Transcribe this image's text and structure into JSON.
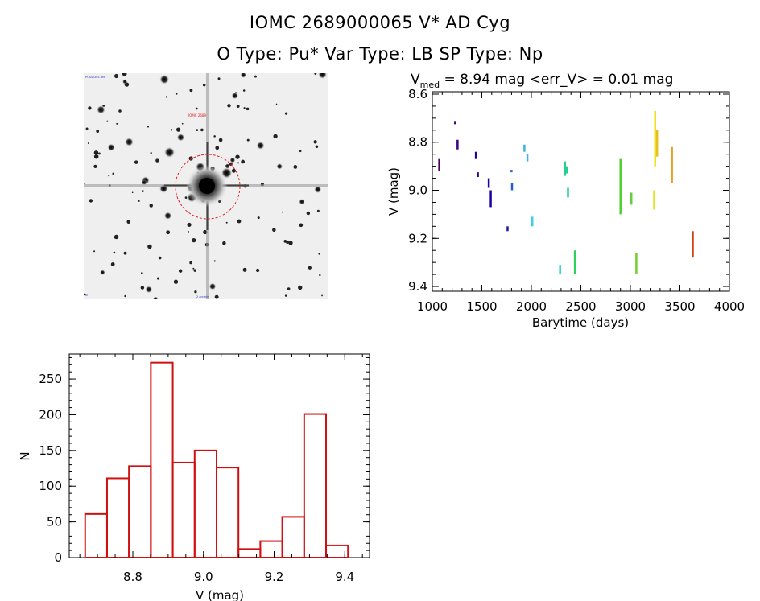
{
  "header": {
    "title": "IOMC 2689000065    V* AD Cyg",
    "subtitle": "O Type: Pu*  Var Type: LB  SP Type: Np"
  },
  "image_panel": {
    "description_icon": "star-field-thumbnail",
    "circle_color": "#ff0000"
  },
  "chart_data": [
    {
      "type": "scatter",
      "title_main": "V",
      "title_sub": "med",
      "title_rest": " = 8.94 mag <err_V> = 0.01 mag",
      "xlabel": "Barytime (days)",
      "ylabel": "V (mag)",
      "xlim": [
        1000,
        4000
      ],
      "ylim": [
        9.42,
        8.59
      ],
      "y_inverted": true,
      "xticks": [
        1000,
        1500,
        2000,
        2500,
        3000,
        3500,
        4000
      ],
      "yticks": [
        8.6,
        8.8,
        9.0,
        9.2,
        9.4
      ],
      "ytick_labels": [
        "8.6",
        "8.8",
        "9.0",
        "9.2",
        "9.4"
      ],
      "segments": [
        {
          "x": 1070,
          "y1": 8.87,
          "y2": 8.92,
          "color": "#4b0059"
        },
        {
          "x": 1230,
          "y1": 8.715,
          "y2": 8.725,
          "color": "#3c0080"
        },
        {
          "x": 1255,
          "y1": 8.79,
          "y2": 8.83,
          "color": "#3c0080"
        },
        {
          "x": 1440,
          "y1": 8.84,
          "y2": 8.87,
          "color": "#2a0090"
        },
        {
          "x": 1460,
          "y1": 8.925,
          "y2": 8.945,
          "color": "#2a0090"
        },
        {
          "x": 1570,
          "y1": 8.95,
          "y2": 8.99,
          "color": "#1f00a8"
        },
        {
          "x": 1590,
          "y1": 9.0,
          "y2": 9.07,
          "color": "#1f00a8"
        },
        {
          "x": 1760,
          "y1": 9.15,
          "y2": 9.17,
          "color": "#1a1aa8"
        },
        {
          "x": 1800,
          "y1": 8.915,
          "y2": 8.925,
          "color": "#1e60d0"
        },
        {
          "x": 1805,
          "y1": 8.97,
          "y2": 9.0,
          "color": "#1e60d0"
        },
        {
          "x": 1930,
          "y1": 8.81,
          "y2": 8.84,
          "color": "#3fb0e8"
        },
        {
          "x": 1960,
          "y1": 8.85,
          "y2": 8.88,
          "color": "#3fb0e8"
        },
        {
          "x": 2010,
          "y1": 9.11,
          "y2": 9.15,
          "color": "#3fd0e0"
        },
        {
          "x": 2290,
          "y1": 9.31,
          "y2": 9.35,
          "color": "#30d0c0"
        },
        {
          "x": 2340,
          "y1": 8.88,
          "y2": 8.94,
          "color": "#20d090"
        },
        {
          "x": 2360,
          "y1": 8.9,
          "y2": 8.93,
          "color": "#20d090"
        },
        {
          "x": 2370,
          "y1": 8.99,
          "y2": 9.03,
          "color": "#20d090"
        },
        {
          "x": 2440,
          "y1": 9.25,
          "y2": 9.35,
          "color": "#30d060"
        },
        {
          "x": 2900,
          "y1": 8.87,
          "y2": 9.1,
          "color": "#50d030"
        },
        {
          "x": 3010,
          "y1": 9.01,
          "y2": 9.06,
          "color": "#60d040"
        },
        {
          "x": 3060,
          "y1": 9.26,
          "y2": 9.35,
          "color": "#70d030"
        },
        {
          "x": 3250,
          "y1": 8.67,
          "y2": 8.9,
          "color": "#f0e020"
        },
        {
          "x": 3270,
          "y1": 8.75,
          "y2": 8.86,
          "color": "#e8c020"
        },
        {
          "x": 3240,
          "y1": 9.0,
          "y2": 9.08,
          "color": "#e8e020"
        },
        {
          "x": 3420,
          "y1": 8.82,
          "y2": 8.97,
          "color": "#e8a020"
        },
        {
          "x": 3630,
          "y1": 9.17,
          "y2": 9.28,
          "color": "#d04010"
        }
      ]
    },
    {
      "type": "bar",
      "subtype": "histogram",
      "xlabel": "V (mag)",
      "ylabel": "N",
      "xlim": [
        8.62,
        9.47
      ],
      "ylim": [
        0,
        285
      ],
      "xticks": [
        8.8,
        9.0,
        9.2,
        9.4
      ],
      "xtick_labels": [
        "8.8",
        "9.0",
        "9.2",
        "9.4"
      ],
      "yticks": [
        0,
        50,
        100,
        150,
        200,
        250
      ],
      "bin_edges": [
        8.665,
        8.727,
        8.789,
        8.851,
        8.913,
        8.975,
        9.037,
        9.099,
        9.161,
        9.223,
        9.285,
        9.347,
        9.409
      ],
      "bins": [
        8.7,
        8.76,
        8.82,
        8.88,
        8.94,
        9.01,
        9.07,
        9.13,
        9.19,
        9.25,
        9.32,
        9.38
      ],
      "values": [
        61,
        111,
        128,
        273,
        133,
        150,
        126,
        12,
        23,
        57,
        201,
        17
      ],
      "color": "#d01010"
    }
  ]
}
